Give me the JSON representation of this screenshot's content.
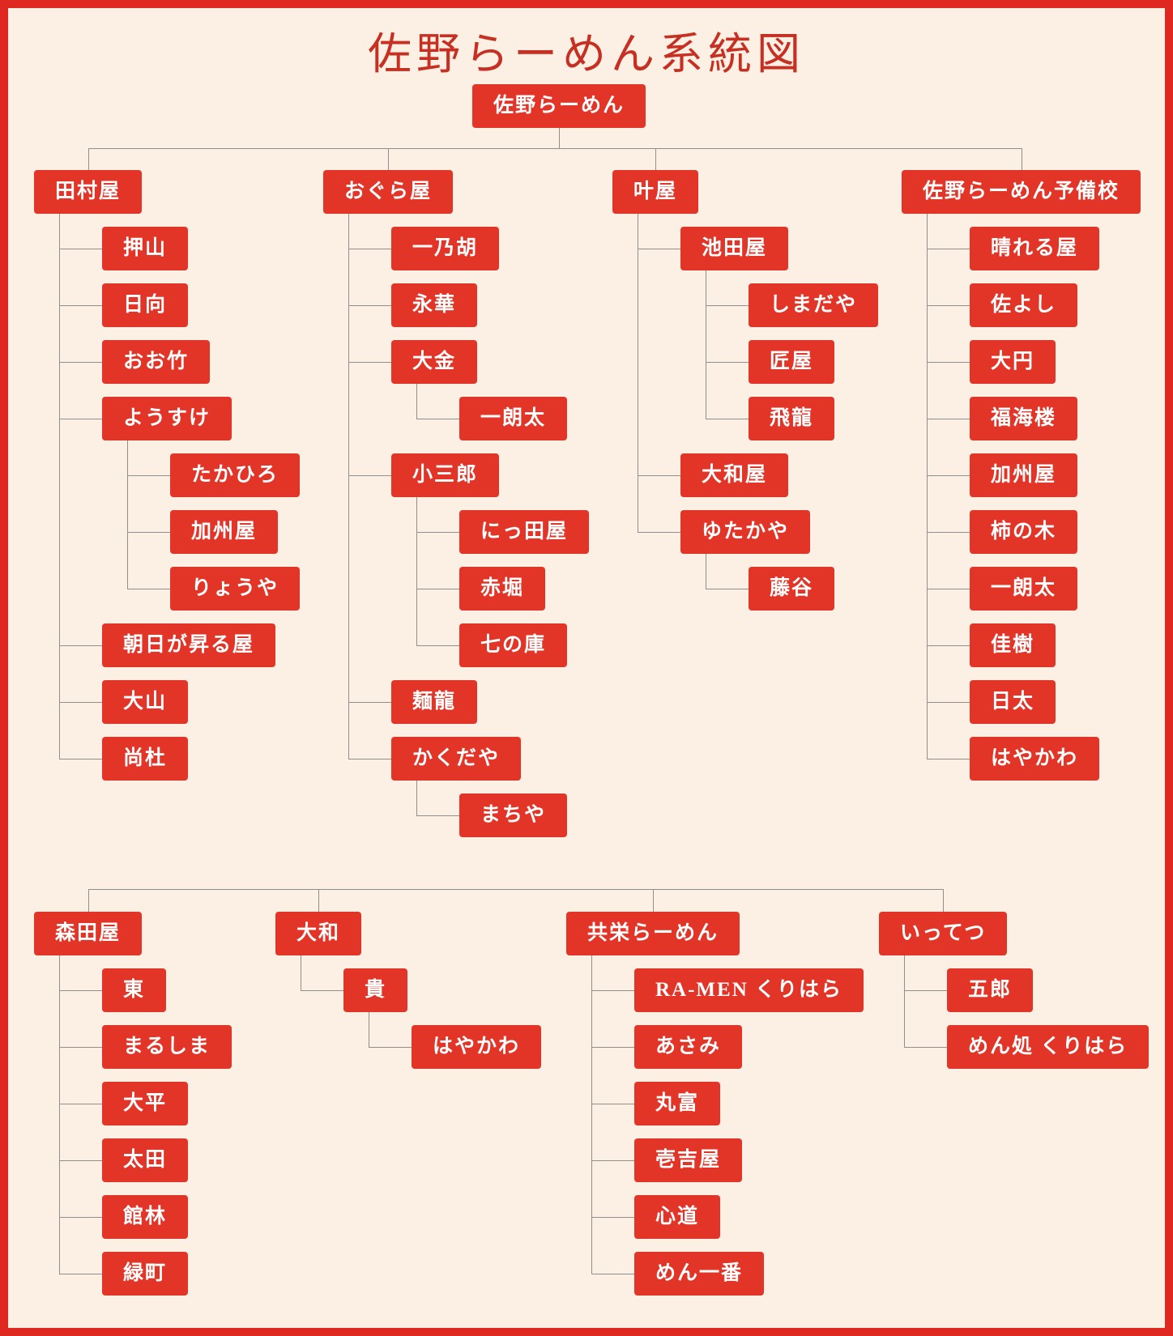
{
  "title": "佐野らーめん系統図",
  "root": {
    "label": "佐野らーめん"
  },
  "colors": {
    "box_red": "#E23528",
    "border_red": "#DF2820",
    "background_cream": "#FBF0E3",
    "line_gray": "#8F8F8F",
    "title_red": "#C62F22"
  },
  "tree_top": {
    "columns": [
      {
        "label": "田村屋",
        "children": [
          {
            "label": "押山"
          },
          {
            "label": "日向"
          },
          {
            "label": "おお竹"
          },
          {
            "label": "ようすけ",
            "children": [
              {
                "label": "たかひろ"
              },
              {
                "label": "加州屋"
              },
              {
                "label": "りょうや"
              }
            ]
          },
          {
            "label": "朝日が昇る屋"
          },
          {
            "label": "大山"
          },
          {
            "label": "尚杜"
          }
        ]
      },
      {
        "label": "おぐら屋",
        "children": [
          {
            "label": "一乃胡"
          },
          {
            "label": "永華"
          },
          {
            "label": "大金",
            "children": [
              {
                "label": "一朗太"
              }
            ]
          },
          {
            "label": "小三郎",
            "children": [
              {
                "label": "にっ田屋"
              },
              {
                "label": "赤堀"
              },
              {
                "label": "七の庫"
              }
            ]
          },
          {
            "label": "麺龍"
          },
          {
            "label": "かくだや",
            "children": [
              {
                "label": "まちや"
              }
            ]
          }
        ]
      },
      {
        "label": "叶屋",
        "children": [
          {
            "label": "池田屋",
            "children": [
              {
                "label": "しまだや"
              },
              {
                "label": "匠屋"
              },
              {
                "label": "飛龍"
              }
            ]
          },
          {
            "label": "大和屋"
          },
          {
            "label": "ゆたかや",
            "children": [
              {
                "label": "藤谷"
              }
            ]
          }
        ]
      },
      {
        "label": "佐野らーめん予備校",
        "children": [
          {
            "label": "晴れる屋"
          },
          {
            "label": "佐よし"
          },
          {
            "label": "大円"
          },
          {
            "label": "福海楼"
          },
          {
            "label": "加州屋"
          },
          {
            "label": "柿の木"
          },
          {
            "label": "一朗太"
          },
          {
            "label": "佳樹"
          },
          {
            "label": "日太"
          },
          {
            "label": "はやかわ"
          }
        ]
      }
    ]
  },
  "tree_bottom": {
    "columns": [
      {
        "label": "森田屋",
        "children": [
          {
            "label": "東"
          },
          {
            "label": "まるしま"
          },
          {
            "label": "大平"
          },
          {
            "label": "太田"
          },
          {
            "label": "館林"
          },
          {
            "label": "緑町"
          }
        ]
      },
      {
        "label": "大和",
        "children": [
          {
            "label": "貴",
            "children": [
              {
                "label": "はやかわ"
              }
            ]
          }
        ]
      },
      {
        "label": "共栄らーめん",
        "children": [
          {
            "label": "RA-MEN くりはら"
          },
          {
            "label": "あさみ"
          },
          {
            "label": "丸富"
          },
          {
            "label": "壱吉屋"
          },
          {
            "label": "心道"
          },
          {
            "label": "めん一番"
          }
        ]
      },
      {
        "label": "いってつ",
        "children": [
          {
            "label": "五郎"
          },
          {
            "label": "めん処 くりはら"
          }
        ]
      }
    ]
  }
}
